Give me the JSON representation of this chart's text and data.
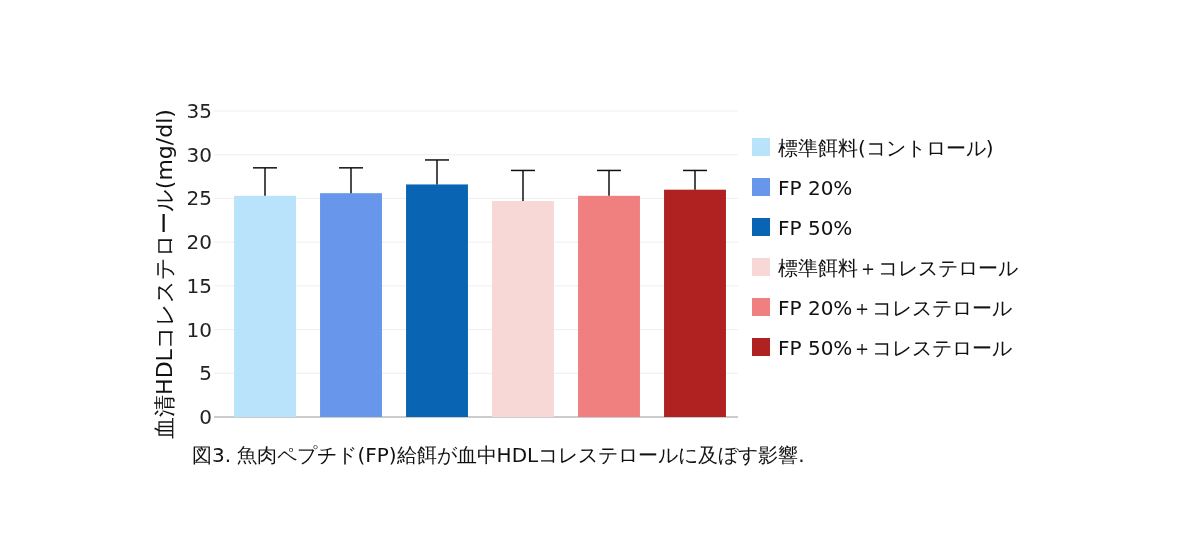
{
  "chart_data": {
    "type": "bar",
    "ylabel": "血清HDLコレステロール(mg/dl)",
    "annotations": [
      "図3. 魚肉ペプチド(FP)給餌が血中HDLコレステロールに及ぼす影響."
    ],
    "categories": [
      null,
      null,
      null,
      null,
      null,
      null
    ],
    "series": [
      {
        "name": "標準餌料(コントロール)",
        "color": "#b9e3fb",
        "values": [
          25.3,
          null,
          null,
          null,
          null,
          null
        ],
        "errors": [
          [
            25.3,
            28.5
          ],
          null,
          null,
          null,
          null,
          null
        ]
      },
      {
        "name": "FP 20%",
        "color": "#6896ea",
        "values": [
          null,
          25.6,
          null,
          null,
          null,
          null
        ],
        "errors": [
          null,
          [
            25.6,
            28.5
          ],
          null,
          null,
          null,
          null
        ]
      },
      {
        "name": "FP 50%",
        "color": "#0a64b4",
        "values": [
          null,
          null,
          26.6,
          null,
          null,
          null
        ],
        "errors": [
          null,
          null,
          [
            26.6,
            29.4
          ],
          null,
          null,
          null
        ]
      },
      {
        "name": "標準餌料＋コレステロール",
        "color": "#f8d7d7",
        "values": [
          null,
          null,
          null,
          24.7,
          null,
          null
        ],
        "errors": [
          null,
          null,
          null,
          [
            24.7,
            28.2
          ],
          null,
          null
        ]
      },
      {
        "name": "FP 20%＋コレステロール",
        "color": "#f08080",
        "values": [
          null,
          null,
          null,
          null,
          25.3,
          null
        ],
        "errors": [
          null,
          null,
          null,
          null,
          [
            25.3,
            28.2
          ],
          null
        ]
      },
      {
        "name": "FP 50%＋コレステロール",
        "color": "#b02222",
        "values": [
          null,
          null,
          null,
          null,
          null,
          26.0
        ],
        "errors": [
          null,
          null,
          null,
          null,
          null,
          [
            26.0,
            28.2
          ]
        ]
      }
    ],
    "ylim": [
      0,
      35
    ],
    "yticks": [
      0,
      5,
      10,
      15,
      20,
      25,
      30,
      35
    ],
    "grid": "y",
    "legend": "right"
  }
}
